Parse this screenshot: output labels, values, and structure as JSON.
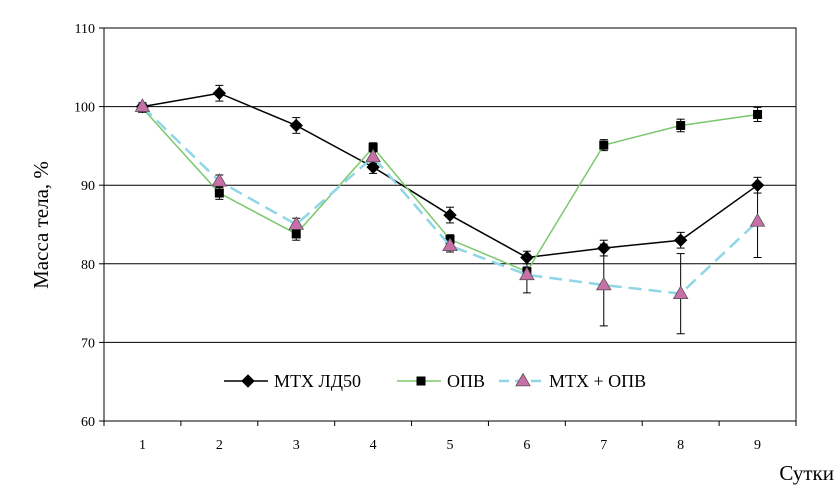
{
  "chart_data": {
    "type": "line",
    "title": "",
    "xlabel": "Сутки",
    "ylabel": "Масса тела, %",
    "x": [
      1,
      2,
      3,
      4,
      5,
      6,
      7,
      8,
      9
    ],
    "xlim": [
      0.5,
      9.5
    ],
    "ylim": [
      60,
      110
    ],
    "yticks": [
      60,
      70,
      80,
      90,
      100,
      110
    ],
    "grid": "horizontal",
    "legend_position": "bottom-center",
    "series": [
      {
        "name": "МТХ ЛД50",
        "marker": "diamond",
        "color": "#000000",
        "line_style": "solid",
        "values": [
          100.0,
          101.7,
          97.6,
          92.3,
          86.2,
          80.8,
          82.0,
          83.0,
          90.0
        ],
        "errors": [
          0.5,
          1.0,
          1.0,
          0.8,
          1.0,
          0.8,
          1.0,
          1.0,
          1.0
        ]
      },
      {
        "name": "ОПВ",
        "marker": "square",
        "color": "#7bc86c",
        "line_style": "solid",
        "values": [
          99.8,
          89.0,
          83.8,
          94.8,
          83.1,
          79.0,
          95.1,
          97.6,
          99.0
        ],
        "errors": [
          0.5,
          0.8,
          0.8,
          0.6,
          0.6,
          0.6,
          0.7,
          0.8,
          0.9
        ]
      },
      {
        "name": "МТХ + ОПВ",
        "marker": "triangle",
        "color": "#8fd6e6",
        "marker_fill": "#c86fa8",
        "line_style": "dashed",
        "values": [
          100.0,
          90.5,
          85.0,
          93.6,
          82.3,
          78.6,
          77.3,
          76.2,
          85.4
        ],
        "errors": [
          0.3,
          0.8,
          0.8,
          0.8,
          0.8,
          2.3,
          5.2,
          5.1,
          4.6
        ]
      }
    ]
  }
}
